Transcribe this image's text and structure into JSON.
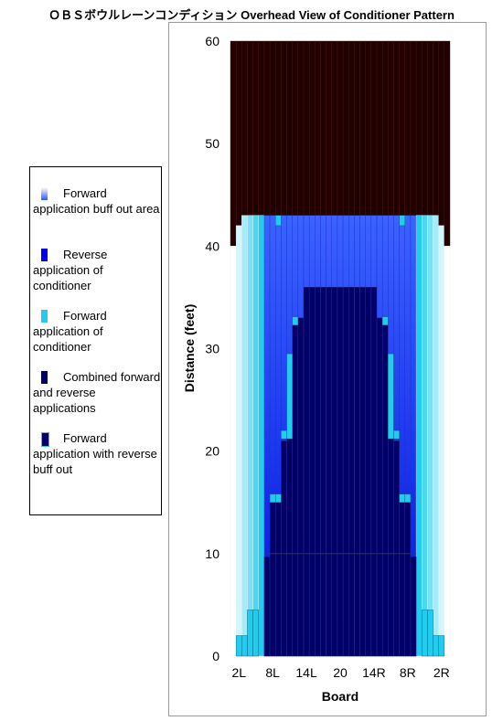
{
  "chart_data": {
    "type": "heatmap",
    "title": "ＯＢＳボウルレーンコンディション Overhead View of Conditioner Pattern",
    "xlabel": "Board",
    "ylabel": "Distance (feet)",
    "ylim": [
      0,
      60
    ],
    "yticks": [
      0,
      10,
      20,
      30,
      40,
      50,
      60
    ],
    "boards": 39,
    "xticks": [
      "2L",
      "8L",
      "14L",
      "20",
      "14R",
      "8R",
      "2R"
    ],
    "xtick_boards": [
      2,
      8,
      14,
      20,
      26,
      32,
      38
    ],
    "grid": false,
    "legend_position": "left",
    "colors": {
      "dry": "#220000",
      "combined": "#000066",
      "reverse": "#0011ee",
      "forward": "#22ccee",
      "buff_fade": "#ffffff"
    },
    "legend": [
      {
        "label": "Forward application buff out area",
        "swatch": "buff"
      },
      {
        "label": "Reverse application of conditioner",
        "swatch": "reverse"
      },
      {
        "label": "Forward application of conditioner",
        "swatch": "forward"
      },
      {
        "label": "Combined forward and reverse applications",
        "swatch": "combined"
      },
      {
        "label": "Forward application with reverse buff out",
        "swatch": "combined-light"
      }
    ],
    "dry_region": {
      "from_feet": 43,
      "to_feet": 60,
      "outer_boards_from_feet": 40,
      "edge_boards_from_feet": 42
    },
    "reverse_region": {
      "to_feet": 43
    },
    "combined_columns": [
      {
        "boards": [
          7,
          33
        ],
        "to_feet": 9.7
      },
      {
        "boards": [
          8,
          32
        ],
        "to_feet": 15
      },
      {
        "boards": [
          9,
          31
        ],
        "to_feet": 15
      },
      {
        "boards": [
          10,
          30
        ],
        "to_feet": 21
      },
      {
        "boards": [
          11,
          29
        ],
        "to_feet": 29.5
      },
      {
        "boards": [
          12,
          28
        ],
        "to_feet": 32.3
      },
      {
        "boards": [
          13,
          27
        ],
        "to_feet": 33
      },
      {
        "boards": [
          14,
          26
        ],
        "to_feet": 36
      },
      {
        "boards": [
          15,
          25
        ],
        "to_feet": 36
      },
      {
        "boards": [
          16,
          24
        ],
        "to_feet": 36
      },
      {
        "boards": [
          17,
          23
        ],
        "to_feet": 36
      },
      {
        "boards": [
          18,
          22
        ],
        "to_feet": 36
      },
      {
        "boards": [
          19,
          21
        ],
        "to_feet": 36
      },
      {
        "boards": [
          20
        ],
        "to_feet": 36
      }
    ],
    "forward_marks": [
      {
        "boards": [
          2,
          38
        ],
        "from_feet": 0,
        "to_feet": 2
      },
      {
        "boards": [
          3,
          37
        ],
        "from_feet": 0,
        "to_feet": 2
      },
      {
        "boards": [
          4,
          36
        ],
        "from_feet": 0,
        "to_feet": 4.5
      },
      {
        "boards": [
          5,
          35
        ],
        "from_feet": 0,
        "to_feet": 4.5
      },
      {
        "boards": [
          8,
          32
        ],
        "from_feet": 15,
        "to_feet": 15.8
      },
      {
        "boards": [
          9,
          31
        ],
        "from_feet": 15,
        "to_feet": 15.8
      },
      {
        "boards": [
          10,
          30
        ],
        "from_feet": 21.2,
        "to_feet": 22
      },
      {
        "boards": [
          11,
          29
        ],
        "from_feet": 21.2,
        "to_feet": 29.5
      },
      {
        "boards": [
          12,
          28
        ],
        "from_feet": 32.3,
        "to_feet": 33.1
      },
      {
        "boards": [
          9,
          31
        ],
        "from_feet": 42,
        "to_feet": 43
      }
    ],
    "center_line_feet": 10
  }
}
